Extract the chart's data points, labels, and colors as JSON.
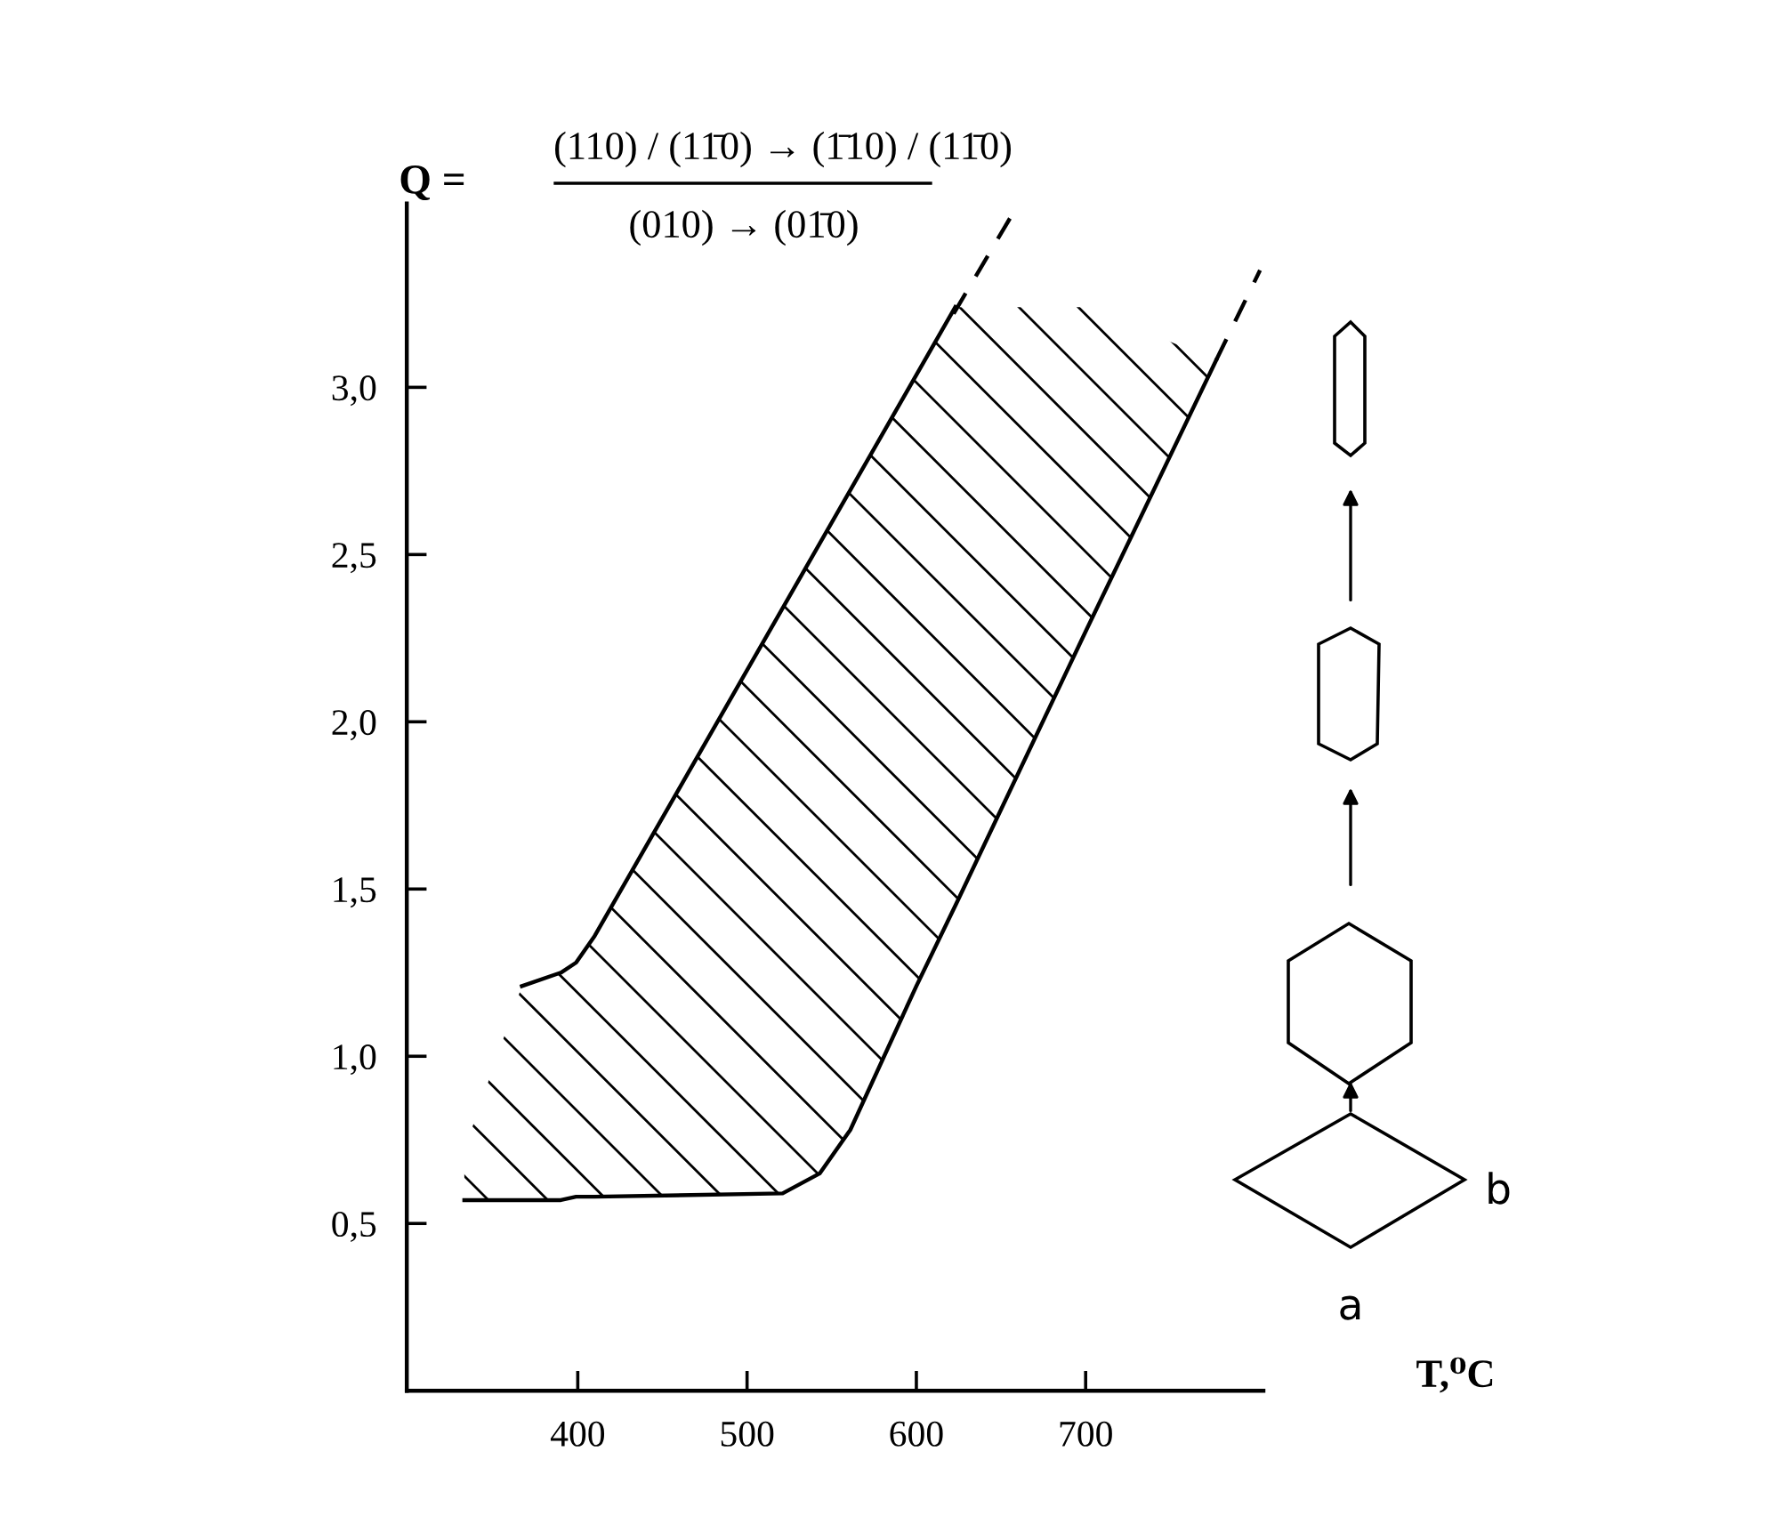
{
  "chart_data": {
    "type": "line",
    "title": "(110) / (11̄0) → (1̄10) / (11̄0)",
    "subtitle": "(010) → (01̄0)",
    "ylabel": "Q =",
    "xlabel": "T,⁰C",
    "xlim": [
      299,
      805
    ],
    "ylim": [
      0,
      3.55
    ],
    "xticks": [
      400,
      500,
      600,
      700
    ],
    "yticks": [
      {
        "value": 0.5,
        "label": "0,5"
      },
      {
        "value": 1.0,
        "label": "1,0"
      },
      {
        "value": 1.5,
        "label": "1,5"
      },
      {
        "value": 2.0,
        "label": "2,0"
      },
      {
        "value": 2.5,
        "label": "2,5"
      },
      {
        "value": 3.0,
        "label": "3,0"
      }
    ],
    "series": [
      {
        "color": "#000000",
        "line_style": "solid",
        "x": [
          367,
          390,
          399,
          410,
          623
        ],
        "values": [
          1.21,
          1.25,
          1.28,
          1.36,
          3.24
        ]
      },
      {
        "color": "#000000",
        "line_style": "solid",
        "x": [
          333,
          367,
          390,
          399,
          410,
          521,
          543,
          561,
          600,
          623,
          700,
          777
        ],
        "values": [
          0.57,
          0.57,
          0.57,
          0.58,
          0.58,
          0.59,
          0.65,
          0.78,
          1.21,
          1.45,
          2.27,
          3.08
        ],
        "lower": [
          0.57,
          0.57,
          0.57,
          0.58,
          0.58,
          0.59,
          0.65,
          0.78,
          1.21,
          1.45,
          2.27,
          3.08
        ],
        "upper": [
          0.72,
          1.21,
          1.25,
          1.28,
          1.36,
          2.34,
          2.53,
          2.69,
          3.04,
          3.24,
          3.24,
          3.08
        ]
      },
      {
        "color": "#000000",
        "line_style": "dashed",
        "x": [
          622,
          657
        ],
        "values": [
          3.22,
          3.52
        ]
      },
      {
        "color": "#000000",
        "line_style": "dashed",
        "x": [
          777,
          803
        ],
        "values": [
          3.08,
          3.35
        ]
      }
    ],
    "annotations": [
      "a",
      "b"
    ],
    "grid": false,
    "legend": false,
    "marker": "none"
  }
}
